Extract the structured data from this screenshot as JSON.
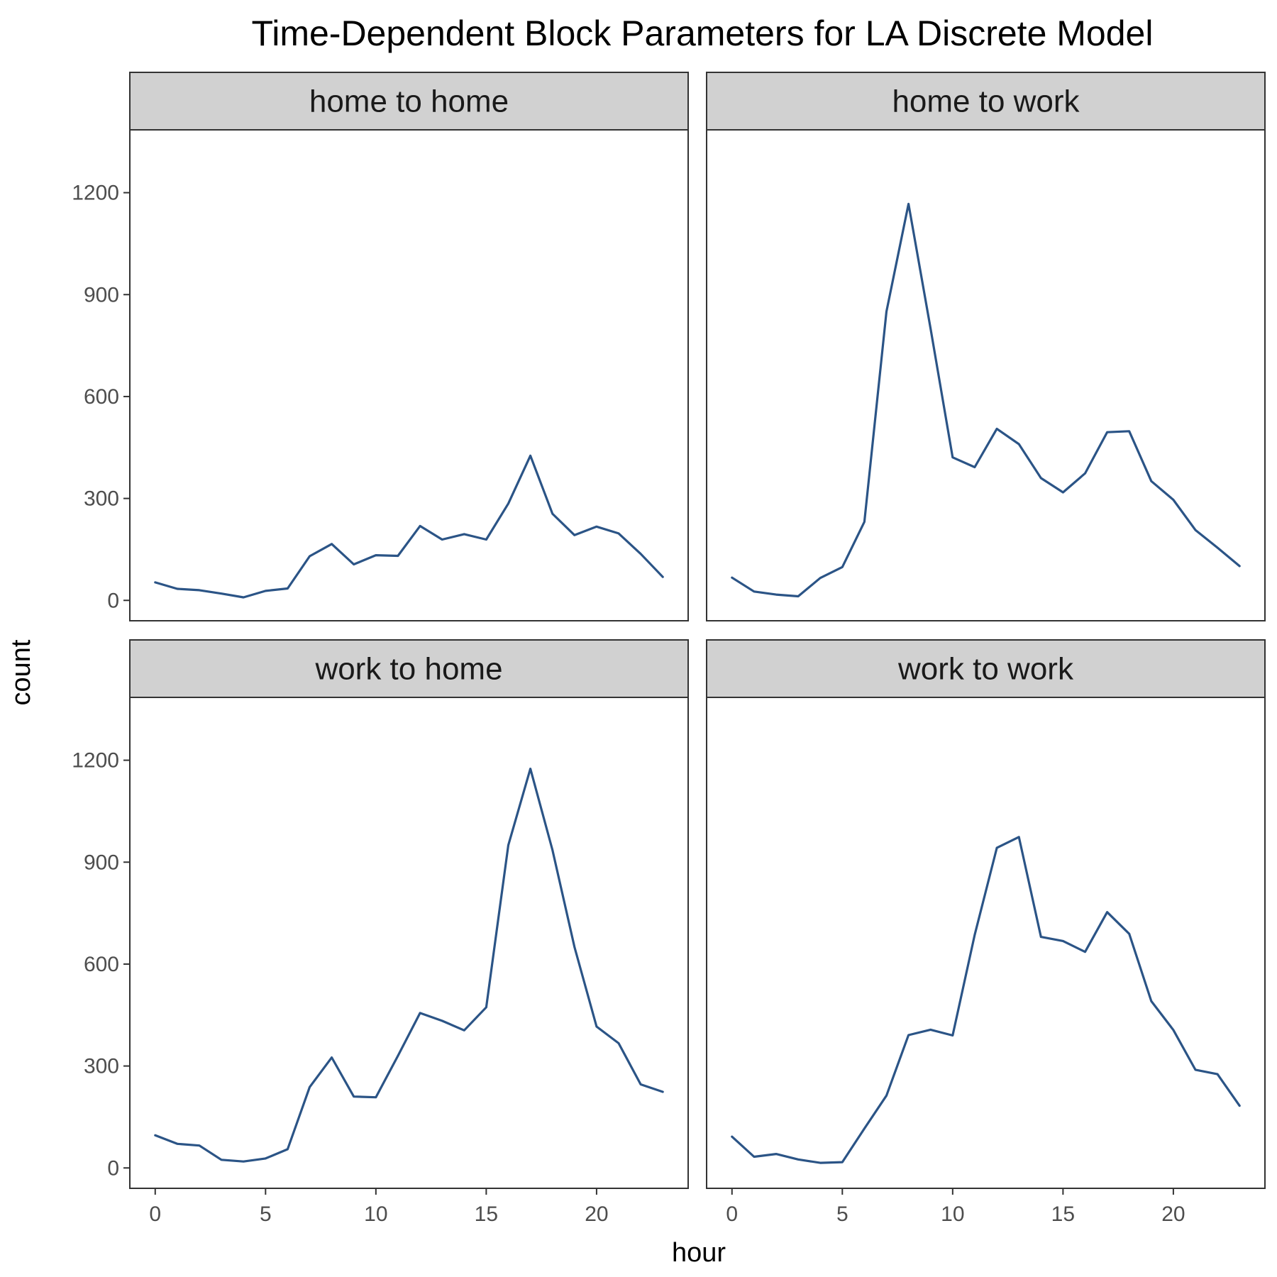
{
  "chart_data": {
    "type": "line",
    "title": "Time-Dependent Block Parameters for LA Discrete Model",
    "xlabel": "hour",
    "ylabel": "count",
    "xlim": [
      -1.15,
      24.15
    ],
    "ylim": [
      -60,
      1385
    ],
    "x_ticks": [
      0,
      5,
      10,
      15,
      20
    ],
    "y_ticks": [
      0,
      300,
      600,
      900,
      1200
    ],
    "grid": false,
    "legend": "none",
    "line_color": "#2b5486",
    "x": [
      0,
      1,
      2,
      3,
      4,
      5,
      6,
      7,
      8,
      9,
      10,
      11,
      12,
      13,
      14,
      15,
      16,
      17,
      18,
      19,
      20,
      21,
      22,
      23
    ],
    "panels": [
      {
        "name": "home to home",
        "values": [
          53,
          34,
          30,
          20,
          9,
          28,
          35,
          130,
          166,
          106,
          133,
          131,
          219,
          179,
          195,
          179,
          285,
          426,
          255,
          192,
          217,
          197,
          137,
          69
        ]
      },
      {
        "name": "home to work",
        "values": [
          67,
          26,
          17,
          12,
          66,
          98,
          231,
          850,
          1167,
          800,
          421,
          392,
          505,
          460,
          360,
          318,
          374,
          495,
          498,
          351,
          296,
          207,
          155,
          101
        ]
      },
      {
        "name": "work to home",
        "values": [
          96,
          71,
          66,
          24,
          19,
          28,
          55,
          238,
          325,
          210,
          208,
          330,
          456,
          433,
          405,
          473,
          950,
          1175,
          936,
          650,
          416,
          367,
          246,
          224
        ]
      },
      {
        "name": "work to work",
        "values": [
          92,
          33,
          41,
          25,
          15,
          17,
          116,
          213,
          391,
          407,
          390,
          686,
          942,
          974,
          680,
          668,
          636,
          753,
          689,
          491,
          406,
          289,
          276,
          183
        ]
      }
    ]
  }
}
